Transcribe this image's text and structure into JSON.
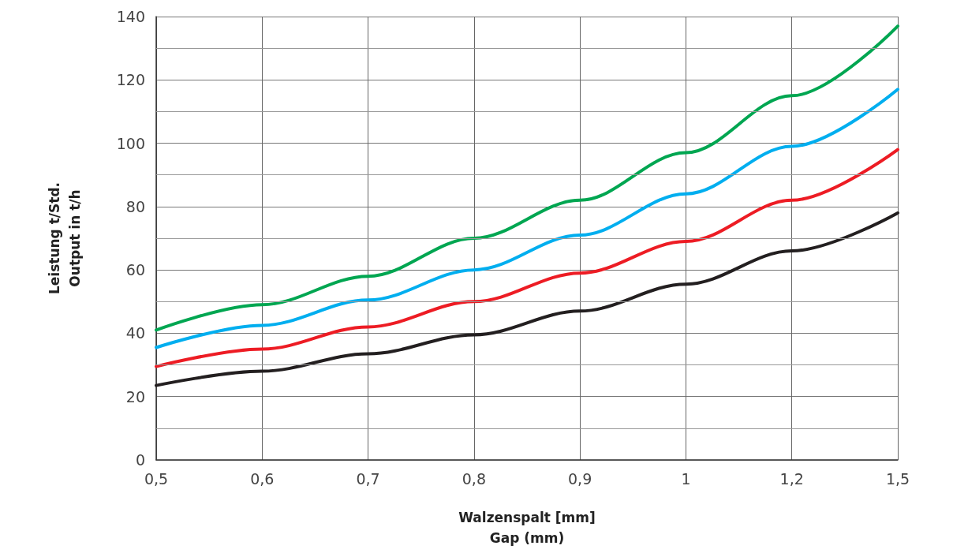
{
  "chart_data": {
    "type": "line",
    "xlabel": "Walzenspalt [mm]\nGap (mm)",
    "ylabel": "Leistung t/Std.\nOutput in t/h",
    "categories": [
      "0,5",
      "0,6",
      "0,7",
      "0,8",
      "0,9",
      "1",
      "1,2",
      "1,5"
    ],
    "series": [
      {
        "color": "#00a651",
        "values": [
          41,
          49,
          58,
          70,
          82,
          97,
          115,
          137
        ]
      },
      {
        "color": "#00aeef",
        "values": [
          35.5,
          42.5,
          50.5,
          60,
          71,
          84,
          99,
          117
        ]
      },
      {
        "color": "#ed1c24",
        "values": [
          29.5,
          35,
          42,
          50,
          59,
          69,
          82,
          98
        ]
      },
      {
        "color": "#231f20",
        "values": [
          23.5,
          28,
          33.5,
          39.5,
          47,
          55.5,
          66,
          78
        ]
      }
    ],
    "ylim": [
      0,
      140
    ],
    "yticks": [
      0,
      {
        "value": 10,
        "label": null
      },
      20,
      {
        "value": 30,
        "label": null
      },
      40,
      {
        "value": 50,
        "label": null
      },
      60,
      {
        "value": 70,
        "label": null
      },
      80,
      {
        "value": 90,
        "label": null
      },
      100,
      {
        "value": 110,
        "label": null
      },
      120,
      {
        "value": 130,
        "label": null
      },
      140
    ],
    "grid": true,
    "marker": "none",
    "line_style": "solid"
  }
}
